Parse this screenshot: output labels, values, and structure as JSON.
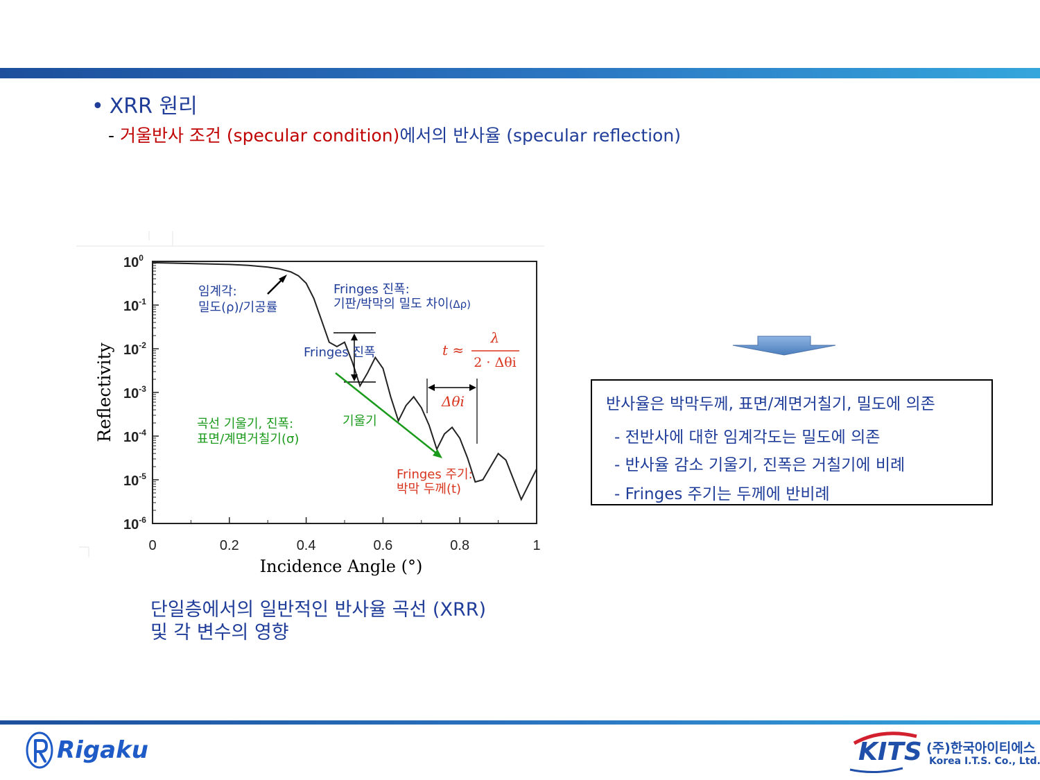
{
  "heading": {
    "bullet": "•",
    "text": "XRR  원리"
  },
  "subheading": {
    "dash": "- ",
    "red_text": "거울반사 조건 (specular condition)",
    "blue_text": "에서의 반사율 (specular reflection)"
  },
  "chart": {
    "ylabel": "Reflectivity",
    "xlabel": "Incidence Angle (°)",
    "xticks": [
      "0",
      "0.2",
      "0.4",
      "0.6",
      "0.8",
      "1"
    ],
    "yticks": [
      {
        "base": "10",
        "exp": "0"
      },
      {
        "base": "10",
        "exp": "-1"
      },
      {
        "base": "10",
        "exp": "-2"
      },
      {
        "base": "10",
        "exp": "-3"
      },
      {
        "base": "10",
        "exp": "-4"
      },
      {
        "base": "10",
        "exp": "-5"
      },
      {
        "base": "10",
        "exp": "-6"
      }
    ],
    "annotations": {
      "critical_line1": "임계각:",
      "critical_line2": "밀도(ρ)/기공률",
      "fringe_amp_line1": "Fringes 진폭:",
      "fringe_amp_line2": "기판/박막의 밀도 차이",
      "fringe_amp_delta": "(Δρ)",
      "fringe_amp_short": "Fringes 진폭",
      "slope_line1": "곡선 기울기, 진폭:",
      "slope_line2": "표면/계면거칠기(σ)",
      "slope_label": "기울기",
      "period_line1": "Fringes 주기:",
      "period_line2": "박막 두께(t)",
      "delta_theta": "Δθi",
      "formula_t": "t ≈",
      "formula_num": "λ",
      "formula_den": "2 · Δθi"
    },
    "colors": {
      "blue": "#1f3d99",
      "green": "#1a9a1a",
      "red": "#d8341e",
      "curve": "#222222"
    }
  },
  "chart_data": {
    "type": "line",
    "xlabel": "Incidence Angle (°)",
    "ylabel": "Reflectivity",
    "xlim": [
      0,
      1
    ],
    "ylim_log10": [
      -6,
      0
    ],
    "yscale": "log",
    "series": [
      {
        "x": [
          0,
          0.05,
          0.1,
          0.15,
          0.2,
          0.25,
          0.3,
          0.33,
          0.36,
          0.38,
          0.4,
          0.42,
          0.44,
          0.46,
          0.48,
          0.5,
          0.52,
          0.54,
          0.56,
          0.58,
          0.6,
          0.62,
          0.64,
          0.66,
          0.68,
          0.7,
          0.72,
          0.74,
          0.76,
          0.78,
          0.8,
          0.82,
          0.84,
          0.86,
          0.88,
          0.9,
          0.92,
          0.94,
          0.96,
          0.98,
          1.0
        ],
        "log10_y": [
          -0.03,
          -0.04,
          -0.05,
          -0.06,
          -0.07,
          -0.09,
          -0.13,
          -0.17,
          -0.24,
          -0.33,
          -0.5,
          -0.85,
          -1.35,
          -1.85,
          -1.95,
          -1.85,
          -2.3,
          -2.85,
          -2.55,
          -2.2,
          -2.45,
          -3.1,
          -3.65,
          -3.3,
          -3.1,
          -3.35,
          -3.75,
          -4.3,
          -3.95,
          -3.8,
          -4.05,
          -4.5,
          -5.05,
          -5.0,
          -4.7,
          -4.4,
          -4.55,
          -5.0,
          -5.45,
          -5.1,
          -4.75
        ]
      }
    ]
  },
  "caption": {
    "line1": "단일층에서의 일반적인 반사율 곡선 (XRR)",
    "line2": "및 각 변수의 영향"
  },
  "summary": {
    "title": "반사율은 박막두께, 표면/계면거칠기, 밀도에 의존",
    "items": [
      "- 전반사에 대한 임계각도는 밀도에 의존",
      "- 반사율 감소 기울기, 진폭은 거칠기에 비례",
      "- Fringes 주기는 두께에 반비례"
    ]
  },
  "footer": {
    "rigaku": "Rigaku",
    "kits": "KITS",
    "kits_ko": "(주)한국아이티에스",
    "kits_en": "Korea I.T.S. Co., Ltd."
  }
}
